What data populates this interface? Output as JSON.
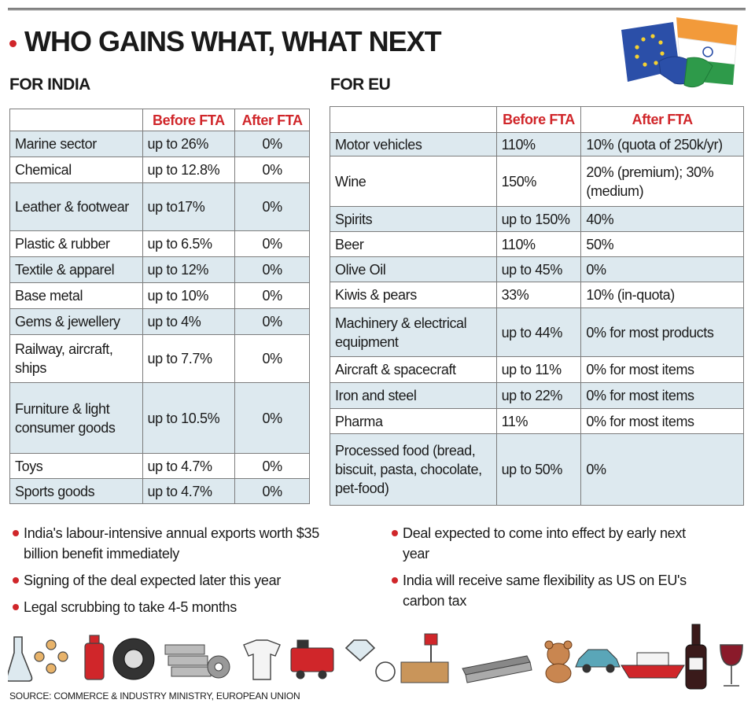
{
  "headline": "WHO GAINS WHAT, WHAT NEXT",
  "india": {
    "title": "FOR INDIA",
    "headers": [
      "",
      "Before FTA",
      "After FTA"
    ],
    "rows": [
      {
        "sector": "Marine sector",
        "before": "up to 26%",
        "after": "0%"
      },
      {
        "sector": "Chemical",
        "before": "up to 12.8%",
        "after": "0%"
      },
      {
        "sector": "Leather & footwear",
        "before": "up to17%",
        "after": "0%"
      },
      {
        "sector": "Plastic & rubber",
        "before": "up to 6.5%",
        "after": "0%"
      },
      {
        "sector": "Textile & apparel",
        "before": "up to 12%",
        "after": "0%"
      },
      {
        "sector": "Base metal",
        "before": "up to 10%",
        "after": "0%"
      },
      {
        "sector": "Gems & jewellery",
        "before": "up to 4%",
        "after": "0%"
      },
      {
        "sector": "Railway, aircraft, ships",
        "before": "up to 7.7%",
        "after": "0%"
      },
      {
        "sector": "Furniture & light consumer goods",
        "before": "up to 10.5%",
        "after": "0%"
      },
      {
        "sector": "Toys",
        "before": "up to 4.7%",
        "after": "0%"
      },
      {
        "sector": "Sports goods",
        "before": "up to 4.7%",
        "after": "0%"
      }
    ]
  },
  "eu": {
    "title": "FOR EU",
    "headers": [
      "",
      "Before FTA",
      "After FTA"
    ],
    "rows": [
      {
        "sector": "Motor vehicles",
        "before": "110%",
        "after": "10% (quota of 250k/yr)"
      },
      {
        "sector": "Wine",
        "before": "150%",
        "after": "20% (premium); 30% (medium)"
      },
      {
        "sector": "Spirits",
        "before": "up to 150%",
        "after": "40%"
      },
      {
        "sector": "Beer",
        "before": "110%",
        "after": "50%"
      },
      {
        "sector": "Olive Oil",
        "before": "up to 45%",
        "after": "0%"
      },
      {
        "sector": "Kiwis & pears",
        "before": "33%",
        "after": "10% (in-quota)"
      },
      {
        "sector": "Machinery & electrical equipment",
        "before": "up to 44%",
        "after": "0% for most products"
      },
      {
        "sector": "Aircraft & spacecraft",
        "before": "up to 11%",
        "after": "0% for most items"
      },
      {
        "sector": "Iron and steel",
        "before": "up to 22%",
        "after": "0% for most items"
      },
      {
        "sector": "Pharma",
        "before": "11%",
        "after": "0% for most items"
      },
      {
        "sector": "Processed food (bread, biscuit, pasta, chocolate, pet-food)",
        "before": "up to 50%",
        "after": "0%"
      }
    ]
  },
  "notes_left": [
    "India's labour-intensive annual exports worth $35 billion benefit immediately",
    "Signing of the deal expected later this year",
    "Legal scrubbing to take 4-5 months"
  ],
  "notes_right": [
    "Deal expected to come into effect by early next year",
    "India will receive same flexibility as US on EU's carbon tax"
  ],
  "source": "SOURCE: COMMERCE & INDUSTRY MINISTRY, EUROPEAN UNION",
  "colors": {
    "accent": "#d0262a",
    "row_tint": "#dde9ef",
    "eu_blue": "#2b4fa8",
    "india_saffron": "#f29a3a",
    "india_green": "#2e9a4a"
  }
}
